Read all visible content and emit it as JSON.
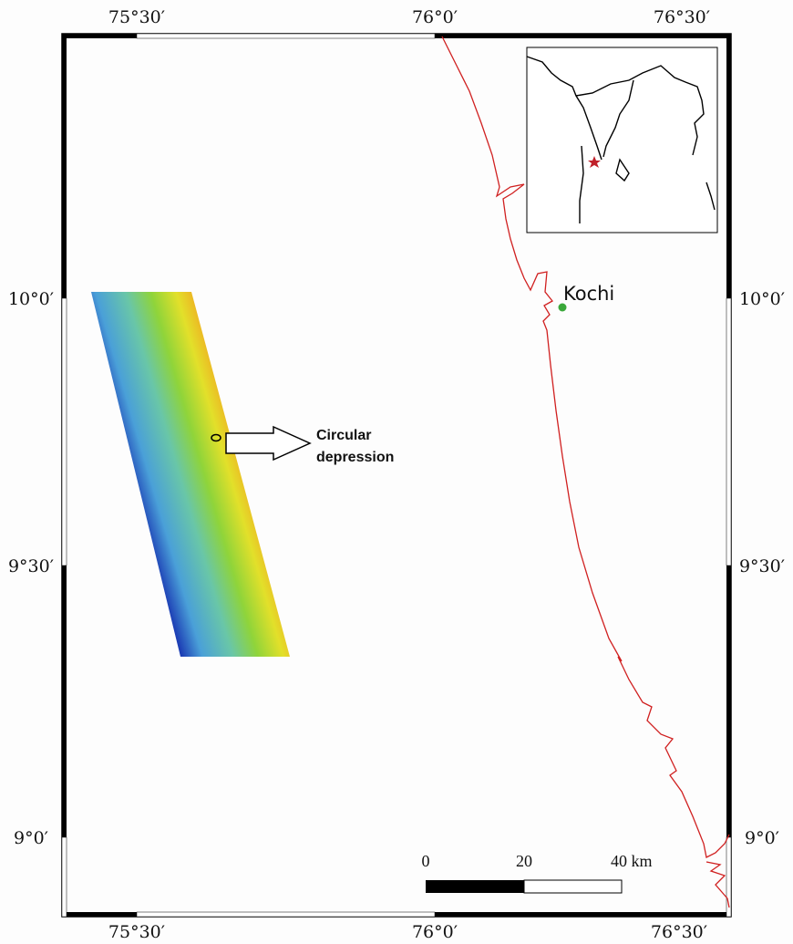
{
  "map": {
    "lon_labels": [
      "75°30′",
      "76°0′",
      "76°30′"
    ],
    "lat_labels": [
      "10°0′",
      "9°30′",
      "9°0′"
    ],
    "place": "Kochi",
    "annotation": [
      "Circular",
      "depression"
    ],
    "scale_bar": {
      "labels": [
        "0",
        "20",
        "40 km"
      ]
    }
  }
}
